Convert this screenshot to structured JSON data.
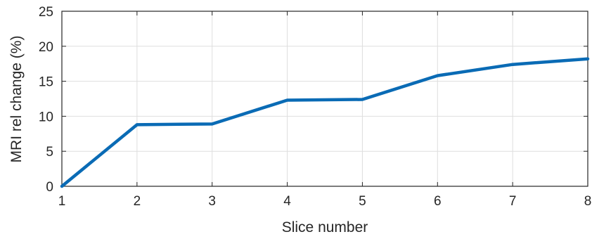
{
  "chart_data": {
    "type": "line",
    "title": "",
    "xlabel": "Slice number",
    "ylabel": "MRI rel change (%)",
    "xlim": [
      1,
      8
    ],
    "ylim": [
      0,
      25
    ],
    "xticks": [
      1,
      2,
      3,
      4,
      5,
      6,
      7,
      8
    ],
    "yticks": [
      0,
      5,
      10,
      15,
      20,
      25
    ],
    "grid": true,
    "legend": "none",
    "series": [
      {
        "color": "#0a6bb5",
        "x": [
          1,
          2,
          3,
          4,
          5,
          6,
          7,
          8
        ],
        "y": [
          0,
          8.8,
          8.9,
          12.3,
          12.4,
          15.8,
          17.4,
          18.2
        ]
      }
    ]
  }
}
